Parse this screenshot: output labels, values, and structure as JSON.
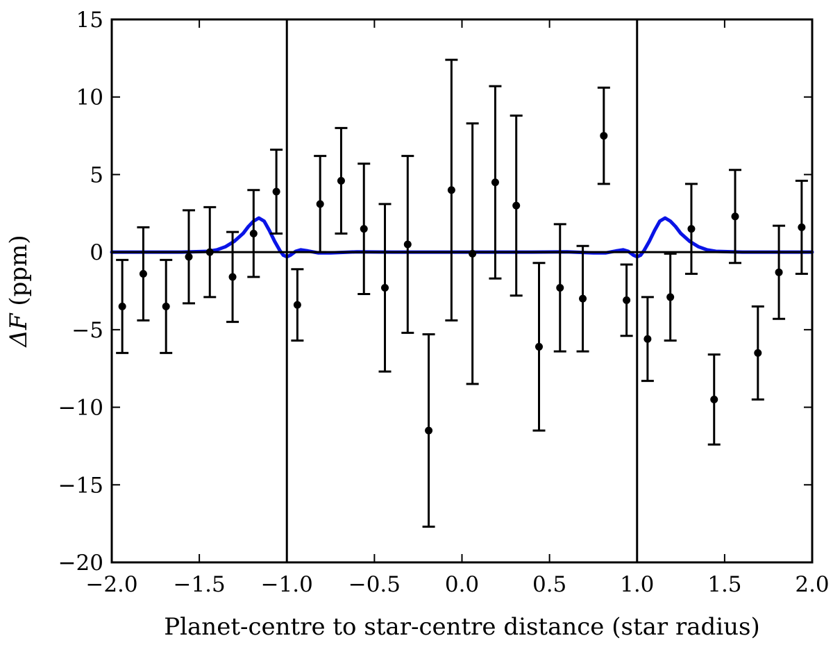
{
  "chart_data": {
    "type": "scatter",
    "title": "",
    "xlabel": "Planet-centre to star-centre distance (star radius)",
    "ylabel_prefix": "ΔF",
    "ylabel_suffix": " (ppm)",
    "xlim": [
      -2.0,
      2.0
    ],
    "ylim": [
      -20,
      15
    ],
    "xticks": [
      -2.0,
      -1.5,
      -1.0,
      -0.5,
      0.0,
      0.5,
      1.0,
      1.5,
      2.0
    ],
    "xtick_labels": [
      "−2.0",
      "−1.5",
      "−1.0",
      "−0.5",
      "0.0",
      "0.5",
      "1.0",
      "1.5",
      "2.0"
    ],
    "yticks": [
      -20,
      -15,
      -10,
      -5,
      0,
      5,
      10,
      15
    ],
    "ytick_labels": [
      "−20",
      "−15",
      "−10",
      "−5",
      "0",
      "5",
      "10",
      "15"
    ],
    "grid": false,
    "reference_lines": {
      "vertical_x": [
        -1.0,
        1.0
      ],
      "horizontal_y": 0
    },
    "points": [
      {
        "x": -1.94,
        "y": -3.5,
        "err": 3.0
      },
      {
        "x": -1.82,
        "y": -1.4,
        "err": 3.0
      },
      {
        "x": -1.69,
        "y": -3.5,
        "err": 3.0
      },
      {
        "x": -1.56,
        "y": -0.3,
        "err": 3.0
      },
      {
        "x": -1.44,
        "y": 0.0,
        "err": 2.9
      },
      {
        "x": -1.31,
        "y": -1.6,
        "err": 2.9
      },
      {
        "x": -1.19,
        "y": 1.2,
        "err": 2.8
      },
      {
        "x": -1.06,
        "y": 3.9,
        "err": 2.7
      },
      {
        "x": -0.94,
        "y": -3.4,
        "err": 2.3
      },
      {
        "x": -0.81,
        "y": 3.1,
        "err": 3.1
      },
      {
        "x": -0.69,
        "y": 4.6,
        "err": 3.4
      },
      {
        "x": -0.56,
        "y": 1.5,
        "err": 4.2
      },
      {
        "x": -0.44,
        "y": -2.3,
        "err": 5.4
      },
      {
        "x": -0.31,
        "y": 0.5,
        "err": 5.7
      },
      {
        "x": -0.19,
        "y": -11.5,
        "err": 6.2
      },
      {
        "x": -0.06,
        "y": 4.0,
        "err": 8.4
      },
      {
        "x": 0.06,
        "y": -0.1,
        "err": 8.4
      },
      {
        "x": 0.19,
        "y": 4.5,
        "err": 6.2
      },
      {
        "x": 0.31,
        "y": 3.0,
        "err": 5.8
      },
      {
        "x": 0.44,
        "y": -6.1,
        "err": 5.4
      },
      {
        "x": 0.56,
        "y": -2.3,
        "err": 4.1
      },
      {
        "x": 0.69,
        "y": -3.0,
        "err": 3.4
      },
      {
        "x": 0.81,
        "y": 7.5,
        "err": 3.1
      },
      {
        "x": 0.94,
        "y": -3.1,
        "err": 2.3
      },
      {
        "x": 1.06,
        "y": -5.6,
        "err": 2.7
      },
      {
        "x": 1.19,
        "y": -2.9,
        "err": 2.8
      },
      {
        "x": 1.31,
        "y": 1.5,
        "err": 2.9
      },
      {
        "x": 1.44,
        "y": -9.5,
        "err": 2.9
      },
      {
        "x": 1.56,
        "y": 2.3,
        "err": 3.0
      },
      {
        "x": 1.69,
        "y": -6.5,
        "err": 3.0
      },
      {
        "x": 1.81,
        "y": -1.3,
        "err": 3.0
      },
      {
        "x": 1.94,
        "y": 1.6,
        "err": 3.0
      }
    ],
    "model_curve": [
      [
        -2.0,
        0.0
      ],
      [
        -1.6,
        0.0
      ],
      [
        -1.45,
        0.05
      ],
      [
        -1.4,
        0.15
      ],
      [
        -1.35,
        0.35
      ],
      [
        -1.3,
        0.7
      ],
      [
        -1.25,
        1.2
      ],
      [
        -1.22,
        1.65
      ],
      [
        -1.19,
        2.0
      ],
      [
        -1.16,
        2.2
      ],
      [
        -1.13,
        2.0
      ],
      [
        -1.1,
        1.4
      ],
      [
        -1.07,
        0.7
      ],
      [
        -1.04,
        0.1
      ],
      [
        -1.02,
        -0.2
      ],
      [
        -1.0,
        -0.3
      ],
      [
        -0.98,
        -0.2
      ],
      [
        -0.95,
        0.05
      ],
      [
        -0.92,
        0.15
      ],
      [
        -0.88,
        0.08
      ],
      [
        -0.82,
        -0.05
      ],
      [
        -0.75,
        -0.05
      ],
      [
        -0.6,
        0.02
      ],
      [
        -0.4,
        0.0
      ],
      [
        0.0,
        0.0
      ],
      [
        0.4,
        0.0
      ],
      [
        0.6,
        0.02
      ],
      [
        0.75,
        -0.05
      ],
      [
        0.82,
        -0.05
      ],
      [
        0.88,
        0.08
      ],
      [
        0.92,
        0.15
      ],
      [
        0.95,
        0.05
      ],
      [
        0.98,
        -0.2
      ],
      [
        1.0,
        -0.3
      ],
      [
        1.02,
        -0.2
      ],
      [
        1.04,
        0.1
      ],
      [
        1.07,
        0.7
      ],
      [
        1.1,
        1.4
      ],
      [
        1.13,
        2.0
      ],
      [
        1.16,
        2.2
      ],
      [
        1.19,
        2.0
      ],
      [
        1.22,
        1.65
      ],
      [
        1.25,
        1.2
      ],
      [
        1.3,
        0.7
      ],
      [
        1.35,
        0.35
      ],
      [
        1.4,
        0.15
      ],
      [
        1.45,
        0.05
      ],
      [
        1.6,
        0.0
      ],
      [
        2.0,
        0.0
      ]
    ],
    "colors": {
      "model": "#0a14e6",
      "points": "#000000",
      "reference": "#000000"
    }
  }
}
